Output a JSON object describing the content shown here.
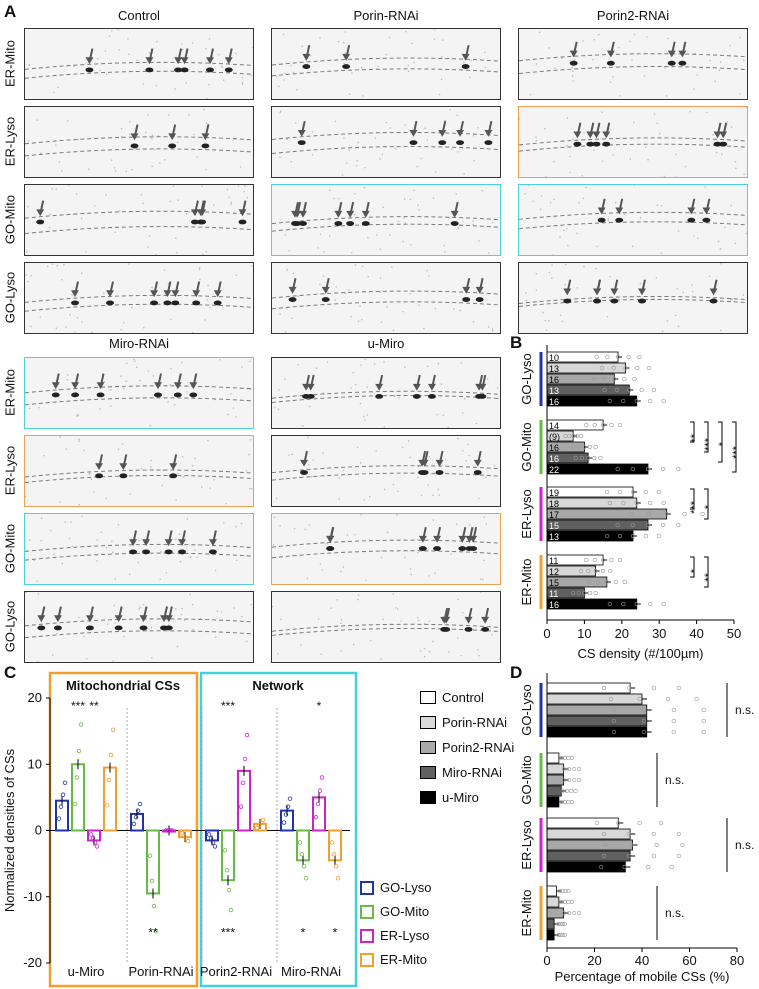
{
  "panel_a": {
    "letter": "A",
    "columns_top": [
      "Control",
      "Porin-RNAi",
      "Porin2-RNAi"
    ],
    "columns_bottom": [
      "Miro-RNAi",
      "u-Miro"
    ],
    "rows": [
      "ER-Mito",
      "ER-Lyso",
      "GO-Mito",
      "GO-Lyso"
    ],
    "border_colors": {
      "black": "#333333",
      "orange": "#f0a050",
      "cyan": "#4fd0e0"
    },
    "top_borders": [
      [
        "black",
        "black",
        "black"
      ],
      [
        "black",
        "black",
        "orange"
      ],
      [
        "black",
        "cyan",
        "cyan"
      ],
      [
        "black",
        "black",
        "black"
      ]
    ],
    "bottom_borders": [
      [
        "cyan",
        "black"
      ],
      [
        "orange",
        "black"
      ],
      [
        "cyan",
        "orange"
      ],
      [
        "black",
        "black"
      ]
    ]
  },
  "panel_b": {
    "letter": "B",
    "chart_data": {
      "type": "bar",
      "orientation": "horizontal",
      "xlabel": "CS density (#/100µm)",
      "xlim": [
        0,
        50
      ],
      "xticks": [
        "0",
        "10",
        "20",
        "30",
        "40",
        "50"
      ],
      "conditions": [
        "Control",
        "Porin-RNAi",
        "Porin2-RNAi",
        "Miro-RNAi",
        "u-Miro"
      ],
      "groups": [
        {
          "name": "GO-Lyso",
          "color": "#2233aa",
          "values": [
            19,
            21,
            18,
            22,
            24
          ],
          "n": [
            "10",
            "13",
            "16",
            "13",
            "16"
          ],
          "sig": []
        },
        {
          "name": "GO-Mito",
          "color": "#66bb44",
          "values": [
            15,
            7,
            10,
            11,
            27
          ],
          "n": [
            "14",
            "(9)",
            "16",
            "16",
            "22"
          ],
          "sig": [
            "**",
            "***",
            "*",
            "***"
          ]
        },
        {
          "name": "ER-Lyso",
          "color": "#cc22cc",
          "values": [
            23,
            24,
            32,
            27,
            23
          ],
          "n": [
            "19",
            "18",
            "17",
            "15",
            "13"
          ],
          "sig": [
            "***",
            "*"
          ]
        },
        {
          "name": "ER-Mito",
          "color": "#f0a030",
          "values": [
            15,
            13,
            16,
            10,
            24
          ],
          "n": [
            "11",
            "12",
            "15",
            "11",
            "16"
          ],
          "sig": [
            "*",
            "**"
          ]
        }
      ]
    }
  },
  "panel_c": {
    "letter": "C",
    "chart_data": {
      "type": "bar",
      "ylabel": "Normalized densities of CSs",
      "ylim": [
        -20,
        20
      ],
      "yticks": [
        "20",
        "10",
        "0",
        "-10",
        "-20"
      ],
      "section_titles": [
        "Mitochondrial CSs",
        "Network"
      ],
      "section_colors": [
        "#f0a030",
        "#40d0e0"
      ],
      "categories": [
        "u-Miro",
        "Porin-RNAi",
        "Porin2-RNAi",
        "Miro-RNAi"
      ],
      "series": [
        {
          "name": "GO-Lyso",
          "color": "#2233aa",
          "values": [
            4.5,
            2.5,
            -1.5,
            3
          ]
        },
        {
          "name": "GO-Mito",
          "color": "#66bb44",
          "values": [
            10,
            -9.5,
            -7.5,
            -4.5
          ]
        },
        {
          "name": "ER-Lyso",
          "color": "#cc22cc",
          "values": [
            -1.5,
            0,
            9,
            5
          ]
        },
        {
          "name": "ER-Mito",
          "color": "#f0a030",
          "values": [
            9.5,
            -1,
            1,
            -4.5
          ]
        }
      ],
      "annotations_top": [
        [
          "",
          "***",
          "**",
          ""
        ],
        [
          "",
          "",
          "",
          ""
        ],
        [
          "",
          "***",
          "",
          ""
        ],
        [
          "",
          "",
          "*",
          ""
        ]
      ],
      "annotations_bottom": [
        [
          "",
          "",
          "",
          ""
        ],
        [
          "",
          "**",
          "",
          ""
        ],
        [
          "",
          "***",
          "",
          ""
        ],
        [
          "",
          "*",
          "",
          "*"
        ]
      ],
      "legend": [
        "GO-Lyso",
        "GO-Mito",
        "ER-Lyso",
        "ER-Mito"
      ]
    }
  },
  "legend_main": {
    "items": [
      {
        "label": "Control",
        "color": "#ffffff"
      },
      {
        "label": "Porin-RNAi",
        "color": "#d8d8d8"
      },
      {
        "label": "Porin2-RNAi",
        "color": "#a8a8a8"
      },
      {
        "label": "Miro-RNAi",
        "color": "#606060"
      },
      {
        "label": "u-Miro",
        "color": "#000000"
      }
    ]
  },
  "panel_d": {
    "letter": "D",
    "chart_data": {
      "type": "bar",
      "orientation": "horizontal",
      "xlabel": "Percentage of mobile CSs (%)",
      "xlim": [
        0,
        80
      ],
      "xticks": [
        "0",
        "20",
        "40",
        "60",
        "80"
      ],
      "groups": [
        {
          "name": "GO-Lyso",
          "color": "#2233aa",
          "values": [
            35,
            40,
            42,
            42,
            42
          ],
          "sig": "n.s."
        },
        {
          "name": "GO-Mito",
          "color": "#66bb44",
          "values": [
            5,
            7,
            7,
            6,
            5
          ],
          "sig": "n.s."
        },
        {
          "name": "ER-Lyso",
          "color": "#cc22cc",
          "values": [
            30,
            35,
            36,
            35,
            33
          ],
          "sig": "n.s."
        },
        {
          "name": "ER-Mito",
          "color": "#f0a030",
          "values": [
            4,
            5,
            7,
            3,
            3
          ],
          "sig": "n.s."
        }
      ]
    }
  }
}
